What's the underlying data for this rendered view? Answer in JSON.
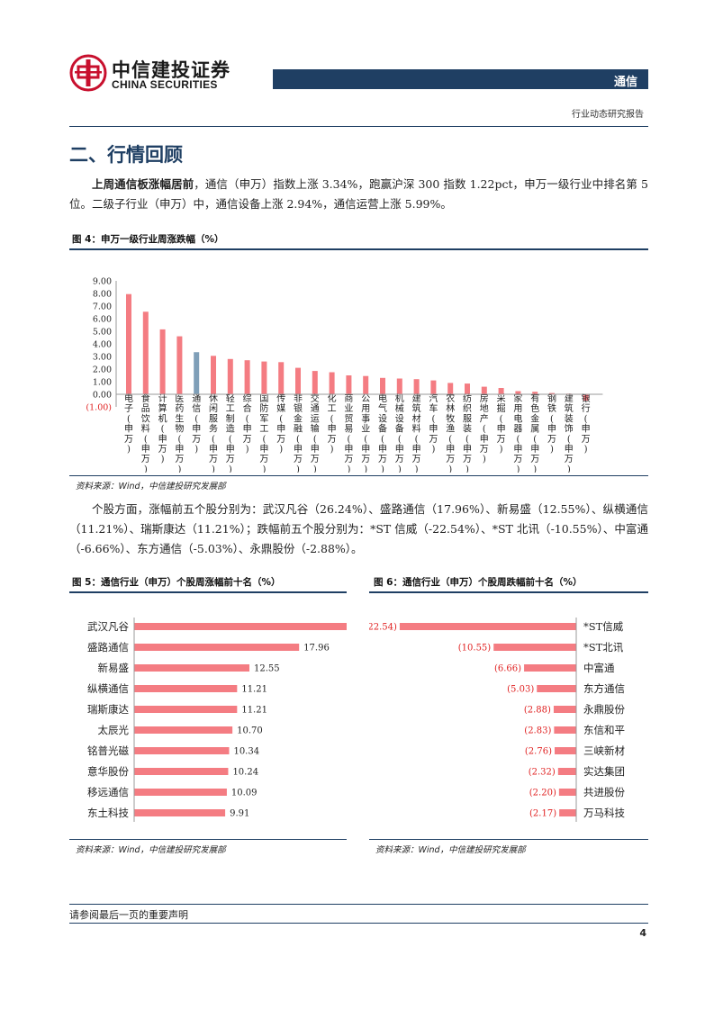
{
  "header": {
    "brand_cn": "中信建投证券",
    "brand_en": "CHINA SECURITIES",
    "sector": "通信",
    "report_type": "行业动态研究报告"
  },
  "section": {
    "title": "二、行情回顾"
  },
  "para1": {
    "bold": "上周通信板涨幅居前",
    "text": "，通信（申万）指数上涨 3.34%，跑赢沪深 300 指数 1.22pct，申万一级行业中排名第 5 位。二级子行业（申万）中，通信设备上涨 2.94%，通信运营上涨 5.99%。"
  },
  "fig4": {
    "title": "图 4：申万一级行业周涨跌幅（%）",
    "source": "资料来源：Wind，中信建投研究发展部"
  },
  "para2": {
    "text": "个股方面，涨幅前五个股分别为：武汉凡谷（26.24%）、盛路通信（17.96%）、新易盛（12.55%）、纵横通信（11.21%）、瑞斯康达（11.21%）；跌幅前五个股分别为：*ST 信威（-22.54%）、*ST 北讯（-10.55%）、中富通（-6.66%）、东方通信（-5.03%）、永鼎股份（-2.88%）。"
  },
  "fig5": {
    "title": "图 5：通信行业（申万）个股周涨幅前十名（%）",
    "source": "资料来源：Wind，中信建投研究发展部"
  },
  "fig6": {
    "title": "图 6：通信行业（申万）个股周跌幅前十名（%）",
    "source": "资料来源：Wind，中信建投研究发展部"
  },
  "footer": {
    "note": "请参阅最后一页的重要声明",
    "page": "4"
  },
  "colors": {
    "navy": "#1f3f63",
    "bar_red": "#f47c82",
    "bar_highlight": "#7f9fb8",
    "negative_label": "#e02020"
  },
  "chart_data": [
    {
      "type": "bar",
      "categories": [
        "电子(申万)",
        "食品饮料(申万)",
        "计算机(申万)",
        "医药生物(申万)",
        "通信(申万)",
        "休闲服务(申万)",
        "轻工制造(申万)",
        "综合(申万)",
        "国防军工(申万)",
        "传媒(申万)",
        "非银金融(申万)",
        "交通运输(申万)",
        "化工(申万)",
        "商业贸易(申万)",
        "公用事业(申万)",
        "电气设备(申万)",
        "机械设备(申万)",
        "建筑材料(申万)",
        "汽车(申万)",
        "农林牧渔(申万)",
        "纺织服装(申万)",
        "房地产(申万)",
        "采掘(申万)",
        "家用电器(申万)",
        "有色金属(申万)",
        "钢铁(申万)",
        "建筑装饰(申万)",
        "银行(申万)"
      ],
      "values": [
        7.95,
        6.55,
        5.15,
        4.6,
        3.34,
        3.05,
        2.8,
        2.7,
        2.6,
        2.55,
        2.1,
        1.85,
        1.75,
        1.5,
        1.45,
        1.3,
        1.25,
        1.2,
        1.1,
        0.9,
        0.85,
        0.6,
        0.5,
        0.25,
        0.2,
        0.1,
        0.05,
        -0.5
      ],
      "highlight": "通信(申万)",
      "yticks": [
        "9.00",
        "8.00",
        "7.00",
        "6.00",
        "5.00",
        "4.00",
        "3.00",
        "2.00",
        "1.00",
        "0.00",
        "(1.00)"
      ],
      "ylim": [
        -1,
        9
      ]
    },
    {
      "type": "bar",
      "orientation": "horizontal",
      "categories": [
        "武汉凡谷",
        "盛路通信",
        "新易盛",
        "纵横通信",
        "瑞斯康达",
        "太辰光",
        "铭普光磁",
        "意华股份",
        "移远通信",
        "东土科技"
      ],
      "values": [
        26.24,
        17.96,
        12.55,
        11.21,
        11.21,
        10.7,
        10.34,
        10.24,
        10.09,
        9.91
      ],
      "labels": [
        "26.24",
        "17.96",
        "12.55",
        "11.21",
        "11.21",
        "10.70",
        "10.34",
        "10.24",
        "10.09",
        "9.91"
      ]
    },
    {
      "type": "bar",
      "orientation": "horizontal",
      "categories": [
        "*ST信威",
        "*ST北讯",
        "中富通",
        "东方通信",
        "永鼎股份",
        "东信和平",
        "三峡新材",
        "实达集团",
        "共进股份",
        "万马科技"
      ],
      "values": [
        -22.54,
        -10.55,
        -6.66,
        -5.03,
        -2.88,
        -2.83,
        -2.76,
        -2.32,
        -2.2,
        -2.17
      ],
      "labels": [
        "(22.54)",
        "(10.55)",
        "(6.66)",
        "(5.03)",
        "(2.88)",
        "(2.83)",
        "(2.76)",
        "(2.32)",
        "(2.20)",
        "(2.17)"
      ]
    }
  ]
}
